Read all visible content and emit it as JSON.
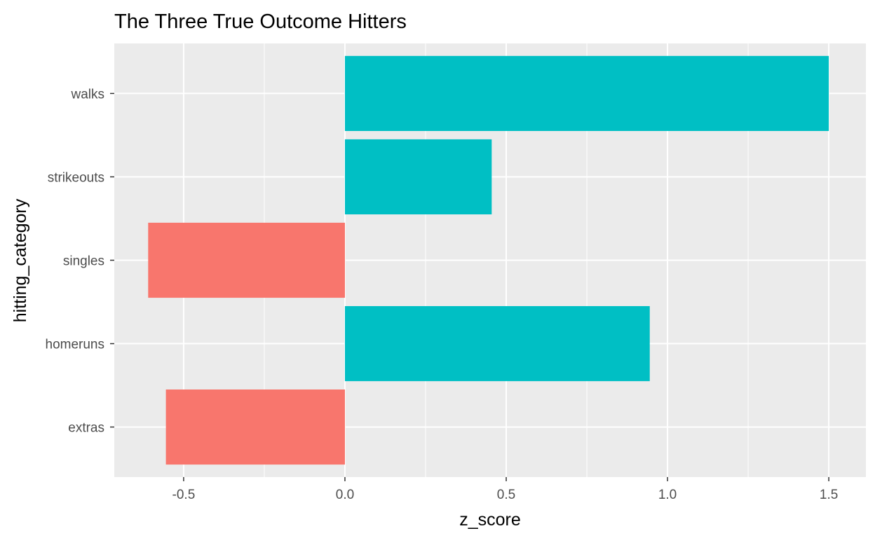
{
  "chart_data": {
    "type": "bar",
    "orientation": "horizontal",
    "title": "The Three True Outcome Hitters",
    "xlabel": "z_score",
    "ylabel": "hitting_category",
    "categories": [
      "walks",
      "strikeouts",
      "singles",
      "homeruns",
      "extras"
    ],
    "values": [
      1.5,
      0.455,
      -0.61,
      0.945,
      -0.555
    ],
    "xlim": [
      -0.715,
      1.615
    ],
    "x_ticks": [
      -0.5,
      0.0,
      0.5,
      1.0,
      1.5
    ],
    "x_tick_labels": [
      "-0.5",
      "0.0",
      "0.5",
      "1.0",
      "1.5"
    ],
    "grid": true,
    "legend": "none",
    "colors": {
      "positive": "#00BFC4",
      "negative": "#F8766D",
      "panel_background": "#EBEBEB",
      "grid_line": "#FFFFFF",
      "tick_text": "#4D4D4D"
    }
  }
}
